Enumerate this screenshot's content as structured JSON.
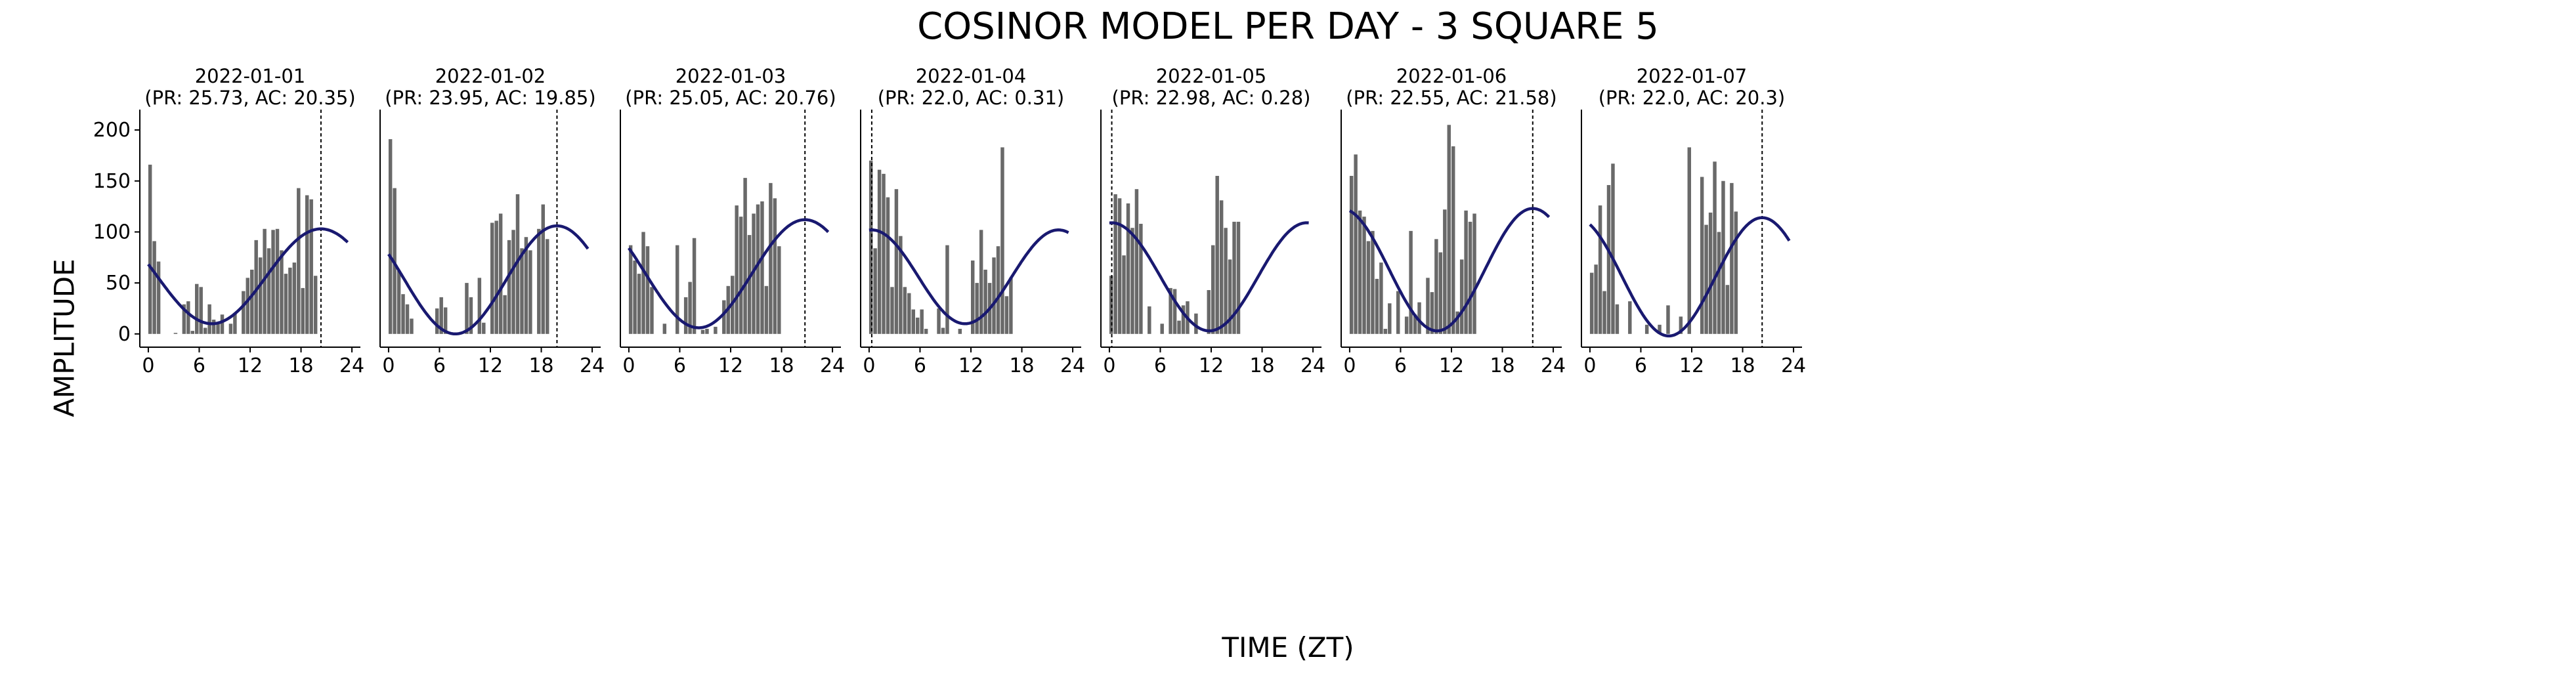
{
  "figure": {
    "title": "COSINOR MODEL PER DAY - 3 SQUARE 5",
    "xlabel": "TIME (ZT)",
    "ylabel": "AMPLITUDE"
  },
  "style": {
    "bar_color": "#696969",
    "curve_color": "#191970",
    "axis_color": "#000000"
  },
  "chart_data": [
    {
      "type": "bar",
      "title_line1": "2022-01-01",
      "title_line2": "(PR: 25.73, AC: 20.35)",
      "x_ticks": [
        "0",
        "6",
        "12",
        "18",
        "24"
      ],
      "y_ticks": [
        "0",
        "50",
        "100",
        "150",
        "200"
      ],
      "xlim": [
        -1,
        25
      ],
      "ylim": [
        -13,
        220
      ],
      "bin_width_hours": 0.5,
      "values": [
        166,
        91,
        71,
        0,
        0,
        0,
        1,
        0,
        29,
        32,
        3,
        49,
        46,
        6,
        29,
        14,
        10,
        19,
        0,
        10,
        20,
        0,
        42,
        55,
        63,
        92,
        75,
        103,
        84,
        102,
        103,
        82,
        59,
        65,
        70,
        143,
        45,
        136,
        132,
        57
      ],
      "cosinor": {
        "mesor": 56.5,
        "amplitude": 46.5,
        "acrophase": 20.35,
        "period": 25.73
      },
      "acrophase_line": 20.35
    },
    {
      "type": "bar",
      "title_line1": "2022-01-02",
      "title_line2": "(PR: 23.95, AC: 19.85)",
      "x_ticks": [
        "0",
        "6",
        "12",
        "18",
        "24"
      ],
      "y_ticks": [],
      "xlim": [
        -1,
        25
      ],
      "ylim": [
        -13,
        220
      ],
      "bin_width_hours": 0.5,
      "values": [
        191,
        143,
        62,
        39,
        29,
        15,
        0,
        0,
        0,
        0,
        0,
        25,
        36,
        26,
        0,
        0,
        0,
        0,
        50,
        36,
        0,
        55,
        11,
        0,
        109,
        111,
        118,
        38,
        92,
        102,
        137,
        84,
        95,
        82,
        0,
        103,
        127,
        93
      ],
      "cosinor": {
        "mesor": 53,
        "amplitude": 53,
        "acrophase": 19.85,
        "period": 23.95
      },
      "acrophase_line": 19.85
    },
    {
      "type": "bar",
      "title_line1": "2022-01-03",
      "title_line2": "(PR: 25.05, AC: 20.76)",
      "x_ticks": [
        "0",
        "6",
        "12",
        "18",
        "24"
      ],
      "y_ticks": [],
      "xlim": [
        -1,
        25
      ],
      "ylim": [
        -13,
        220
      ],
      "bin_width_hours": 0.5,
      "values": [
        87,
        72,
        59,
        100,
        86,
        46,
        0,
        0,
        10,
        0,
        0,
        87,
        0,
        36,
        51,
        94,
        0,
        4,
        5,
        0,
        7,
        0,
        33,
        47,
        57,
        126,
        115,
        153,
        97,
        118,
        127,
        130,
        47,
        148,
        133,
        86
      ],
      "cosinor": {
        "mesor": 59,
        "amplitude": 53,
        "acrophase": 20.76,
        "period": 25.05
      },
      "acrophase_line": 20.76
    },
    {
      "type": "bar",
      "title_line1": "2022-01-04",
      "title_line2": "(PR: 22.0, AC: 0.31)",
      "x_ticks": [
        "0",
        "6",
        "12",
        "18",
        "24"
      ],
      "y_ticks": [],
      "xlim": [
        -1,
        25
      ],
      "ylim": [
        -13,
        220
      ],
      "bin_width_hours": 0.5,
      "values": [
        170,
        84,
        161,
        157,
        134,
        46,
        142,
        96,
        46,
        40,
        24,
        16,
        24,
        5,
        0,
        0,
        25,
        6,
        87,
        0,
        0,
        5,
        0,
        0,
        72,
        50,
        102,
        63,
        50,
        75,
        86,
        183,
        37,
        55
      ],
      "cosinor": {
        "mesor": 56,
        "amplitude": 46,
        "acrophase": 0.31,
        "period": 22.0
      },
      "acrophase_line": 0.31
    },
    {
      "type": "bar",
      "title_line1": "2022-01-05",
      "title_line2": "(PR: 22.98, AC: 0.28)",
      "x_ticks": [
        "0",
        "6",
        "12",
        "18",
        "24"
      ],
      "y_ticks": [],
      "xlim": [
        -1,
        25
      ],
      "ylim": [
        -13,
        220
      ],
      "bin_width_hours": 0.5,
      "values": [
        57,
        137,
        133,
        77,
        128,
        104,
        142,
        108,
        0,
        27,
        0,
        0,
        10,
        0,
        45,
        44,
        13,
        28,
        32,
        0,
        20,
        0,
        0,
        43,
        87,
        155,
        131,
        104,
        73,
        110,
        110
      ],
      "cosinor": {
        "mesor": 56,
        "amplitude": 53,
        "acrophase": 0.28,
        "period": 22.98
      },
      "acrophase_line": 0.28
    },
    {
      "type": "bar",
      "title_line1": "2022-01-06",
      "title_line2": "(PR: 22.55, AC: 21.58)",
      "x_ticks": [
        "0",
        "6",
        "12",
        "18",
        "24"
      ],
      "y_ticks": [],
      "xlim": [
        -1,
        25
      ],
      "ylim": [
        -13,
        220
      ],
      "bin_width_hours": 0.5,
      "values": [
        155,
        176,
        121,
        115,
        91,
        101,
        54,
        70,
        5,
        30,
        0,
        42,
        0,
        17,
        101,
        19,
        31,
        0,
        55,
        41,
        93,
        80,
        122,
        205,
        184,
        22,
        73,
        121,
        110,
        118
      ],
      "cosinor": {
        "mesor": 63,
        "amplitude": 60,
        "acrophase": 21.58,
        "period": 22.55
      },
      "acrophase_line": 21.58
    },
    {
      "type": "bar",
      "title_line1": "2022-01-07",
      "title_line2": "(PR: 22.0, AC: 20.3)",
      "x_ticks": [
        "0",
        "6",
        "12",
        "18",
        "24"
      ],
      "y_ticks": [],
      "xlim": [
        -1,
        25
      ],
      "ylim": [
        -13,
        220
      ],
      "bin_width_hours": 0.5,
      "values": [
        60,
        68,
        126,
        42,
        146,
        167,
        29,
        0,
        0,
        32,
        0,
        0,
        0,
        9,
        0,
        0,
        9,
        0,
        28,
        0,
        0,
        17,
        0,
        183,
        0,
        0,
        154,
        107,
        119,
        169,
        100,
        150,
        48,
        148,
        120
      ],
      "cosinor": {
        "mesor": 56,
        "amplitude": 58,
        "acrophase": 20.3,
        "period": 22.0
      },
      "acrophase_line": 20.3
    }
  ]
}
